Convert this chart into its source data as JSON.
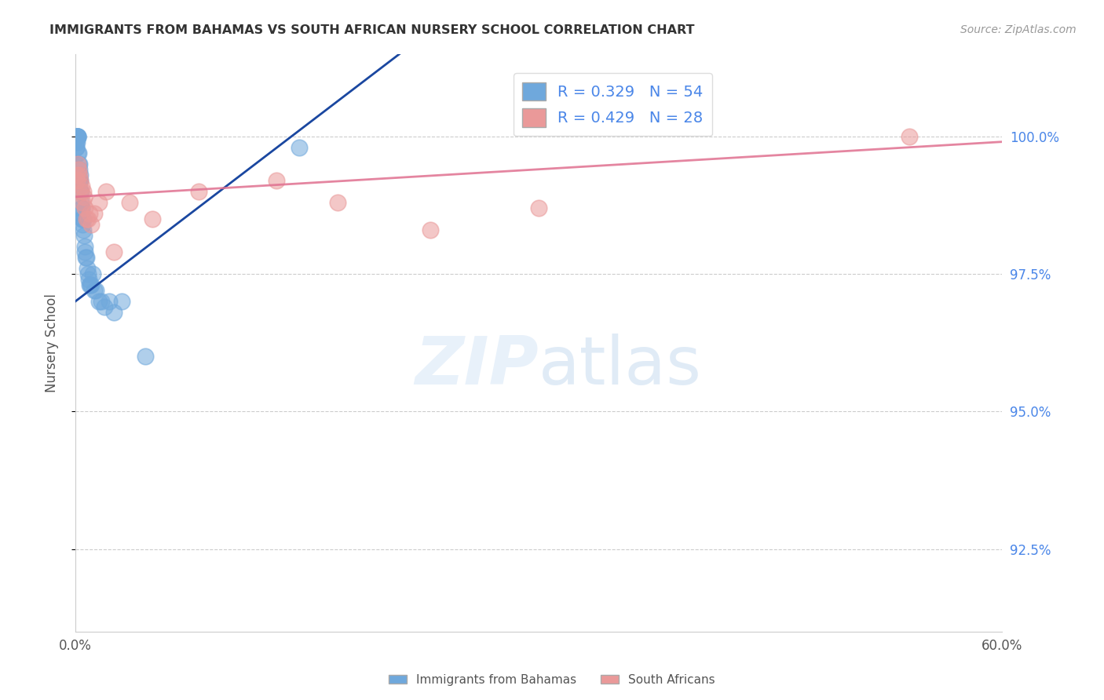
{
  "title": "IMMIGRANTS FROM BAHAMAS VS SOUTH AFRICAN NURSERY SCHOOL CORRELATION CHART",
  "source": "Source: ZipAtlas.com",
  "ylabel": "Nursery School",
  "xlim": [
    0.0,
    60.0
  ],
  "ylim": [
    91.0,
    101.5
  ],
  "yticks": [
    92.5,
    95.0,
    97.5,
    100.0
  ],
  "ytick_labels": [
    "92.5%",
    "95.0%",
    "97.5%",
    "100.0%"
  ],
  "xticks": [
    0.0,
    10.0,
    20.0,
    30.0,
    40.0,
    50.0,
    60.0
  ],
  "legend1_label": "Immigrants from Bahamas",
  "legend2_label": "South Africans",
  "R_blue": 0.329,
  "N_blue": 54,
  "R_pink": 0.429,
  "N_pink": 28,
  "color_blue": "#6fa8dc",
  "color_pink": "#ea9999",
  "color_blue_line": "#1a47a0",
  "color_pink_line": "#e07090",
  "color_title": "#333333",
  "color_source": "#999999",
  "color_grid": "#cccccc",
  "color_right_axis": "#4a86e8",
  "blue_x": [
    0.05,
    0.07,
    0.08,
    0.1,
    0.12,
    0.13,
    0.15,
    0.16,
    0.18,
    0.2,
    0.22,
    0.25,
    0.28,
    0.3,
    0.33,
    0.35,
    0.38,
    0.4,
    0.43,
    0.45,
    0.48,
    0.5,
    0.55,
    0.6,
    0.65,
    0.7,
    0.8,
    0.9,
    1.0,
    1.1,
    1.2,
    1.3,
    1.5,
    1.7,
    1.9,
    2.2,
    2.5,
    3.0,
    0.06,
    0.09,
    0.11,
    0.14,
    0.17,
    0.23,
    0.27,
    0.32,
    0.42,
    0.52,
    0.62,
    0.75,
    0.85,
    0.95,
    4.5,
    14.5
  ],
  "blue_y": [
    99.8,
    99.9,
    100.0,
    100.0,
    100.0,
    100.0,
    100.0,
    100.0,
    99.5,
    99.7,
    99.2,
    99.5,
    99.0,
    99.3,
    98.8,
    99.0,
    98.6,
    98.7,
    98.5,
    98.5,
    98.4,
    98.5,
    98.2,
    98.0,
    97.8,
    97.8,
    97.5,
    97.3,
    97.3,
    97.5,
    97.2,
    97.2,
    97.0,
    97.0,
    96.9,
    97.0,
    96.8,
    97.0,
    99.8,
    100.0,
    99.9,
    100.0,
    99.7,
    99.4,
    99.2,
    99.2,
    98.7,
    98.3,
    97.9,
    97.6,
    97.4,
    97.3,
    96.0,
    99.8
  ],
  "pink_x": [
    0.1,
    0.15,
    0.2,
    0.25,
    0.3,
    0.35,
    0.4,
    0.45,
    0.5,
    0.55,
    0.6,
    0.7,
    0.8,
    0.9,
    1.0,
    1.2,
    1.5,
    2.0,
    2.5,
    3.5,
    5.0,
    8.0,
    13.0,
    17.0,
    23.0,
    30.0,
    54.0,
    0.12
  ],
  "pink_y": [
    99.2,
    99.5,
    99.4,
    99.3,
    99.2,
    99.0,
    99.1,
    98.8,
    99.0,
    98.9,
    98.7,
    98.5,
    98.5,
    98.6,
    98.4,
    98.6,
    98.8,
    99.0,
    97.9,
    98.8,
    98.5,
    99.0,
    99.2,
    98.8,
    98.3,
    98.7,
    100.0,
    99.3
  ]
}
